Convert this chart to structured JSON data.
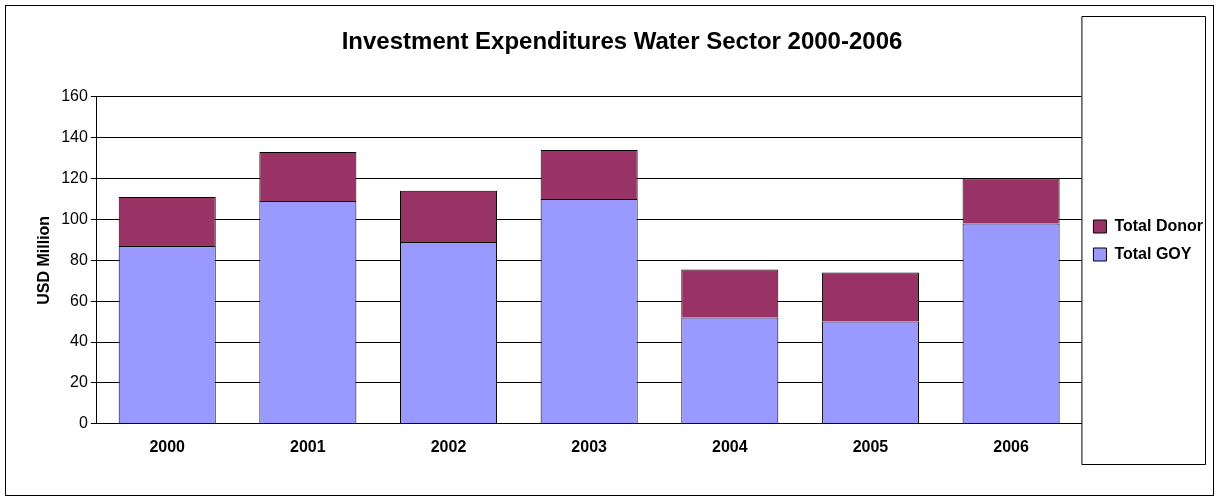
{
  "chart_data": {
    "type": "bar",
    "title": "Investment Expenditures Water Sector 2000-2006",
    "ylabel": "USD Million",
    "categories": [
      "2000",
      "2001",
      "2002",
      "2003",
      "2004",
      "2005",
      "2006"
    ],
    "series": [
      {
        "name": "Total GOY",
        "color": "#9999ff",
        "values": [
          87,
          109,
          89,
          110,
          52,
          50,
          98
        ]
      },
      {
        "name": "Total Donor",
        "color": "#993366",
        "values": [
          24,
          24,
          25,
          24,
          23.5,
          24,
          22
        ]
      }
    ],
    "stacked": true,
    "ylim": [
      0,
      160
    ],
    "yticks": [
      0,
      20,
      40,
      60,
      80,
      100,
      120,
      140,
      160
    ],
    "grid": "y",
    "legend": "right"
  }
}
